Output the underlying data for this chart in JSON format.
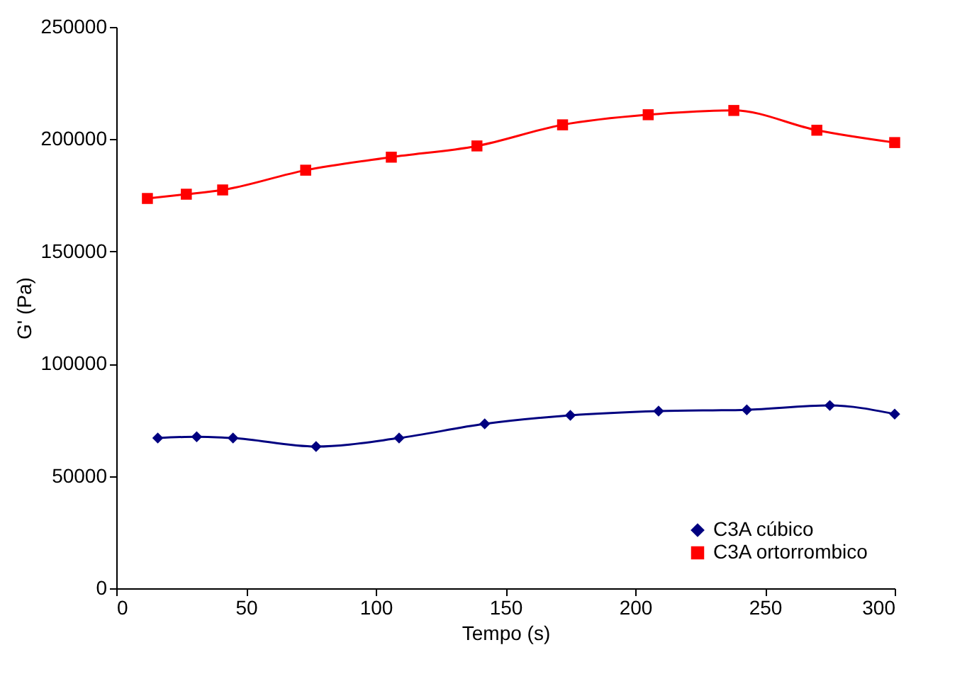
{
  "chart_data": {
    "type": "line",
    "xlabel": "Tempo (s)",
    "ylabel": "G' (Pa)",
    "xlim": [
      0,
      300
    ],
    "xticks": [
      0,
      50,
      100,
      150,
      200,
      250,
      300
    ],
    "ylim": [
      0,
      250000
    ],
    "yticks": [
      0,
      50000,
      100000,
      150000,
      200000,
      250000
    ],
    "grid": false,
    "legend": "bottom right",
    "series": [
      {
        "name": "C3A cúbico",
        "color": "#000080",
        "marker": "diamond",
        "x": [
          16,
          31,
          45,
          77,
          109,
          142,
          175,
          209,
          243,
          275,
          300
        ],
        "values": [
          66900,
          67500,
          66900,
          63100,
          66900,
          73200,
          77000,
          78900,
          79500,
          81400,
          77600
        ]
      },
      {
        "name": "C3A ortorrombico",
        "color": "#ff0000",
        "marker": "square",
        "x": [
          12,
          27,
          41,
          73,
          106,
          139,
          172,
          205,
          238,
          270,
          300
        ],
        "values": [
          173600,
          175500,
          177400,
          186200,
          192000,
          197000,
          206400,
          210900,
          212800,
          204000,
          198500
        ]
      }
    ]
  }
}
